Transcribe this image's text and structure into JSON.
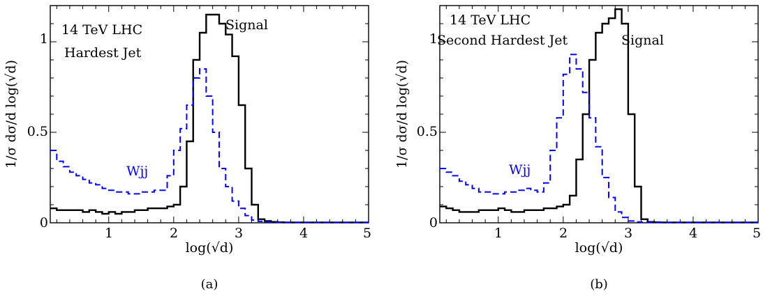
{
  "chart_data": [
    {
      "type": "line",
      "panel_caption": "(a)",
      "xlabel": "log(√d)",
      "ylabel": "1/σ dσ/d log(√d)",
      "xlim": [
        0.1,
        5.0
      ],
      "ylim": [
        0,
        1.2
      ],
      "xticks": [
        "1",
        "2",
        "3",
        "4",
        "5"
      ],
      "yticks": [
        "0",
        "0.5",
        "1"
      ],
      "annotations": [
        "14 TeV LHC",
        "Hardest Jet"
      ],
      "line_style": "step",
      "bin_edges": [
        0.1,
        0.2,
        0.3,
        0.4,
        0.5,
        0.6,
        0.7,
        0.8,
        0.9,
        1.0,
        1.1,
        1.2,
        1.3,
        1.4,
        1.5,
        1.6,
        1.7,
        1.8,
        1.9,
        2.0,
        2.1,
        2.2,
        2.3,
        2.4,
        2.5,
        2.6,
        2.7,
        2.8,
        2.9,
        3.0,
        3.1,
        3.2,
        3.3,
        3.4,
        3.5,
        3.6,
        3.7,
        3.8,
        3.9,
        4.0,
        4.1,
        4.2,
        4.3,
        4.4,
        4.5,
        4.6,
        4.7,
        4.8,
        4.9,
        5.0
      ],
      "series": [
        {
          "name": "Signal",
          "color": "#000000",
          "dash": "solid",
          "values": [
            0.08,
            0.07,
            0.07,
            0.07,
            0.07,
            0.06,
            0.07,
            0.06,
            0.05,
            0.06,
            0.05,
            0.06,
            0.06,
            0.07,
            0.07,
            0.08,
            0.08,
            0.08,
            0.09,
            0.1,
            0.2,
            0.45,
            0.9,
            1.05,
            1.15,
            1.15,
            1.1,
            1.04,
            0.92,
            0.65,
            0.3,
            0.1,
            0.02,
            0.01,
            0.005,
            0.003,
            0.002,
            0.002,
            0.002,
            0.002,
            0.002,
            0.002,
            0.002,
            0.002,
            0.002,
            0.002,
            0.002,
            0.002,
            0.002
          ]
        },
        {
          "name": "Wjj",
          "color": "#0000ff",
          "dash": "dashed",
          "values": [
            0.4,
            0.34,
            0.31,
            0.28,
            0.26,
            0.24,
            0.22,
            0.21,
            0.19,
            0.18,
            0.17,
            0.17,
            0.16,
            0.16,
            0.17,
            0.17,
            0.18,
            0.18,
            0.26,
            0.4,
            0.52,
            0.65,
            0.8,
            0.85,
            0.7,
            0.5,
            0.3,
            0.2,
            0.12,
            0.08,
            0.04,
            0.015,
            0.008,
            0.004,
            0.003,
            0.002,
            0.002,
            0.002,
            0.002,
            0.002,
            0.002,
            0.002,
            0.002,
            0.002,
            0.002,
            0.002,
            0.002,
            0.002,
            0.002
          ]
        }
      ]
    },
    {
      "type": "line",
      "panel_caption": "(b)",
      "xlabel": "log(√d)",
      "ylabel": "1/σ dσ/d log(√d)",
      "xlim": [
        0.1,
        5.0
      ],
      "ylim": [
        0,
        1.2
      ],
      "xticks": [
        "1",
        "2",
        "3",
        "4",
        "5"
      ],
      "yticks": [
        "0",
        "0.5",
        "1"
      ],
      "annotations": [
        "14 TeV LHC",
        "Second Hardest Jet"
      ],
      "line_style": "step",
      "bin_edges": [
        0.1,
        0.2,
        0.3,
        0.4,
        0.5,
        0.6,
        0.7,
        0.8,
        0.9,
        1.0,
        1.1,
        1.2,
        1.3,
        1.4,
        1.5,
        1.6,
        1.7,
        1.8,
        1.9,
        2.0,
        2.1,
        2.2,
        2.3,
        2.4,
        2.5,
        2.6,
        2.7,
        2.8,
        2.9,
        3.0,
        3.1,
        3.2,
        3.3,
        3.4,
        3.5,
        3.6,
        3.7,
        3.8,
        3.9,
        4.0,
        4.1,
        4.2,
        4.3,
        4.4,
        4.5,
        4.6,
        4.7,
        4.8,
        4.9,
        5.0
      ],
      "series": [
        {
          "name": "Signal",
          "color": "#000000",
          "dash": "solid",
          "values": [
            0.09,
            0.08,
            0.07,
            0.06,
            0.06,
            0.06,
            0.07,
            0.07,
            0.07,
            0.08,
            0.07,
            0.06,
            0.06,
            0.07,
            0.07,
            0.07,
            0.08,
            0.08,
            0.09,
            0.1,
            0.15,
            0.35,
            0.6,
            0.9,
            1.05,
            1.1,
            1.13,
            1.18,
            1.1,
            0.6,
            0.2,
            0.02,
            0.005,
            0.003,
            0.002,
            0.002,
            0.002,
            0.002,
            0.002,
            0.002,
            0.002,
            0.002,
            0.002,
            0.002,
            0.002,
            0.002,
            0.002,
            0.002,
            0.002
          ]
        },
        {
          "name": "Wjj",
          "color": "#0000ff",
          "dash": "dashed",
          "values": [
            0.3,
            0.28,
            0.26,
            0.23,
            0.21,
            0.19,
            0.17,
            0.17,
            0.16,
            0.16,
            0.17,
            0.17,
            0.18,
            0.19,
            0.18,
            0.17,
            0.22,
            0.4,
            0.58,
            0.82,
            0.93,
            0.85,
            0.72,
            0.58,
            0.42,
            0.25,
            0.14,
            0.06,
            0.03,
            0.01,
            0.005,
            0.003,
            0.002,
            0.002,
            0.002,
            0.002,
            0.002,
            0.002,
            0.002,
            0.002,
            0.002,
            0.002,
            0.002,
            0.002,
            0.002,
            0.002,
            0.002,
            0.002,
            0.002
          ]
        }
      ]
    }
  ]
}
